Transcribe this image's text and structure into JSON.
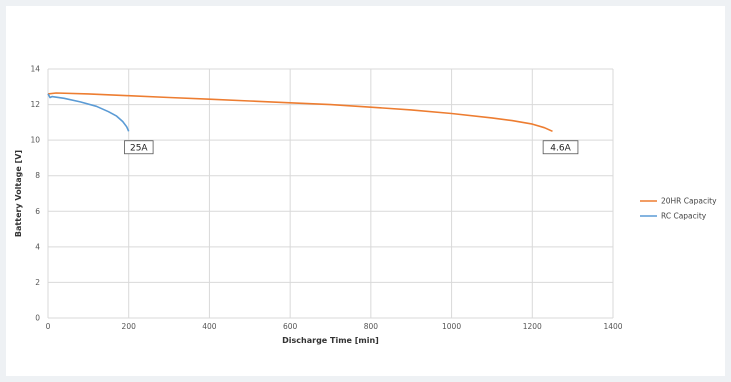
{
  "chart_data": {
    "type": "line",
    "xlabel": "Discharge Time [min]",
    "ylabel": "Battery Voltage [V]",
    "xlim": [
      0,
      1400
    ],
    "ylim": [
      0,
      14
    ],
    "x_ticks": [
      0,
      200,
      400,
      600,
      800,
      1000,
      1200,
      1400
    ],
    "y_ticks": [
      0,
      2,
      4,
      6,
      8,
      10,
      12,
      14
    ],
    "grid": true,
    "legend_position": "right",
    "series": [
      {
        "name": "20HR Capacity",
        "color": "#ed7d31",
        "x": [
          0,
          20,
          100,
          200,
          300,
          400,
          500,
          600,
          700,
          800,
          900,
          1000,
          1100,
          1150,
          1200,
          1230,
          1250
        ],
        "y": [
          12.6,
          12.65,
          12.6,
          12.5,
          12.4,
          12.3,
          12.2,
          12.1,
          12.0,
          11.85,
          11.7,
          11.5,
          11.25,
          11.1,
          10.9,
          10.7,
          10.5
        ]
      },
      {
        "name": "RC Capacity",
        "color": "#5b9bd5",
        "x": [
          0,
          5,
          10,
          40,
          80,
          120,
          150,
          170,
          185,
          195,
          200
        ],
        "y": [
          12.6,
          12.4,
          12.45,
          12.35,
          12.15,
          11.9,
          11.6,
          11.35,
          11.05,
          10.75,
          10.5
        ]
      }
    ],
    "annotations": [
      {
        "label": "25A",
        "x": 225,
        "y": 9.6
      },
      {
        "label": "4.6A",
        "x": 1270,
        "y": 9.6
      }
    ]
  }
}
